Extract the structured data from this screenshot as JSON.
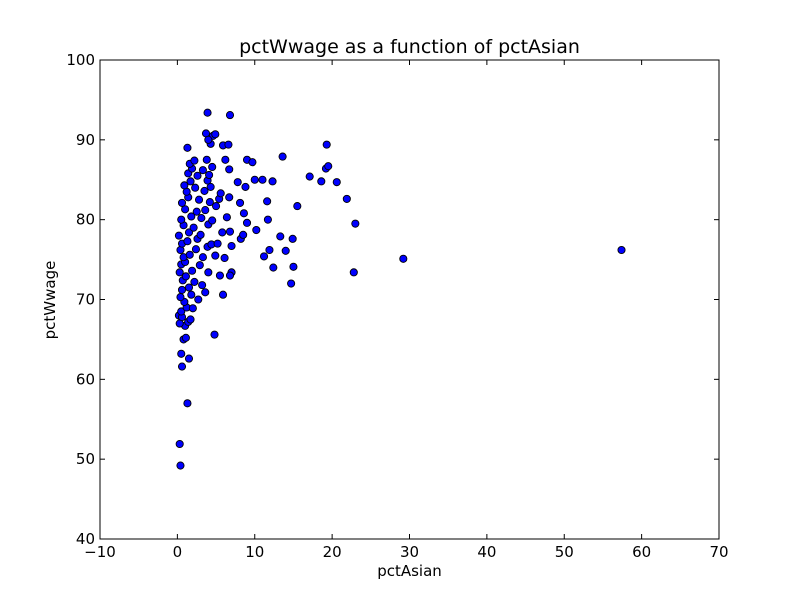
{
  "chart_data": {
    "type": "scatter",
    "title": "pctWwage as a function of pctAsian",
    "xlabel": "pctAsian",
    "ylabel": "pctWwage",
    "xlim": [
      -10,
      70
    ],
    "ylim": [
      40,
      100
    ],
    "xticks": [
      -10,
      0,
      10,
      20,
      30,
      40,
      50,
      60,
      70
    ],
    "yticks": [
      40,
      50,
      60,
      70,
      80,
      90,
      100
    ],
    "xtick_labels": [
      "−10",
      "0",
      "10",
      "20",
      "30",
      "40",
      "50",
      "60",
      "70"
    ],
    "ytick_labels": [
      "40",
      "50",
      "60",
      "70",
      "80",
      "90",
      "100"
    ],
    "grid": false,
    "legend": "none",
    "colors": {
      "point_fill": "#0000ff",
      "point_edge": "#000000",
      "axes": "#000000",
      "background": "#ffffff"
    },
    "series": [
      {
        "values": [
          [
            0.4,
            49.2
          ],
          [
            0.3,
            51.9
          ],
          [
            1.3,
            57.0
          ],
          [
            0.6,
            61.6
          ],
          [
            0.5,
            63.2
          ],
          [
            1.5,
            62.6
          ],
          [
            0.8,
            65.0
          ],
          [
            1.1,
            65.2
          ],
          [
            4.8,
            65.6
          ],
          [
            1.0,
            66.7
          ],
          [
            1.4,
            67.2
          ],
          [
            0.3,
            67.0
          ],
          [
            0.2,
            68.0
          ],
          [
            0.6,
            67.8
          ],
          [
            1.7,
            67.5
          ],
          [
            0.5,
            68.5
          ],
          [
            1.2,
            69.0
          ],
          [
            2.0,
            68.9
          ],
          [
            0.9,
            69.7
          ],
          [
            0.4,
            70.3
          ],
          [
            1.8,
            70.6
          ],
          [
            2.7,
            70.0
          ],
          [
            3.6,
            70.9
          ],
          [
            5.9,
            70.6
          ],
          [
            0.6,
            71.2
          ],
          [
            1.5,
            71.5
          ],
          [
            3.2,
            71.8
          ],
          [
            0.7,
            72.4
          ],
          [
            1.1,
            72.9
          ],
          [
            2.2,
            72.2
          ],
          [
            14.7,
            72.0
          ],
          [
            0.3,
            73.4
          ],
          [
            1.9,
            73.6
          ],
          [
            4.0,
            73.4
          ],
          [
            5.5,
            73.0
          ],
          [
            7.0,
            73.4
          ],
          [
            12.4,
            74.0
          ],
          [
            22.8,
            73.4
          ],
          [
            0.5,
            74.4
          ],
          [
            1.0,
            74.7
          ],
          [
            2.9,
            74.3
          ],
          [
            6.8,
            73.0
          ],
          [
            15.0,
            74.1
          ],
          [
            0.8,
            75.3
          ],
          [
            1.6,
            75.6
          ],
          [
            3.3,
            75.3
          ],
          [
            4.9,
            75.5
          ],
          [
            6.1,
            75.2
          ],
          [
            11.2,
            75.4
          ],
          [
            29.2,
            75.1
          ],
          [
            0.4,
            76.2
          ],
          [
            2.4,
            76.3
          ],
          [
            3.9,
            76.6
          ],
          [
            7.0,
            76.7
          ],
          [
            11.9,
            76.2
          ],
          [
            14.0,
            76.1
          ],
          [
            57.4,
            76.2
          ],
          [
            0.6,
            77.0
          ],
          [
            1.3,
            77.3
          ],
          [
            2.6,
            77.6
          ],
          [
            4.4,
            76.9
          ],
          [
            5.2,
            77.0
          ],
          [
            8.2,
            77.6
          ],
          [
            13.3,
            77.9
          ],
          [
            14.9,
            77.6
          ],
          [
            0.2,
            78.0
          ],
          [
            1.5,
            78.4
          ],
          [
            3.0,
            78.1
          ],
          [
            5.8,
            78.4
          ],
          [
            6.8,
            78.5
          ],
          [
            10.2,
            78.7
          ],
          [
            0.8,
            79.3
          ],
          [
            2.1,
            79.0
          ],
          [
            4.0,
            79.4
          ],
          [
            8.5,
            78.1
          ],
          [
            23.0,
            79.5
          ],
          [
            0.5,
            80.0
          ],
          [
            1.8,
            80.4
          ],
          [
            3.1,
            80.2
          ],
          [
            4.5,
            79.9
          ],
          [
            6.4,
            80.3
          ],
          [
            9.0,
            79.6
          ],
          [
            11.7,
            80.0
          ],
          [
            1.0,
            81.3
          ],
          [
            2.5,
            81.0
          ],
          [
            3.6,
            81.2
          ],
          [
            5.0,
            81.7
          ],
          [
            8.6,
            80.8
          ],
          [
            15.5,
            81.7
          ],
          [
            0.6,
            82.1
          ],
          [
            1.4,
            82.8
          ],
          [
            2.8,
            82.5
          ],
          [
            4.2,
            82.2
          ],
          [
            5.4,
            82.6
          ],
          [
            6.7,
            82.8
          ],
          [
            8.1,
            82.1
          ],
          [
            11.6,
            82.3
          ],
          [
            21.9,
            82.6
          ],
          [
            1.2,
            83.5
          ],
          [
            3.5,
            83.6
          ],
          [
            5.6,
            83.3
          ],
          [
            0.9,
            84.3
          ],
          [
            2.3,
            84.0
          ],
          [
            4.3,
            84.1
          ],
          [
            8.8,
            84.1
          ],
          [
            1.7,
            84.8
          ],
          [
            3.9,
            84.9
          ],
          [
            7.8,
            84.7
          ],
          [
            10.0,
            85.0
          ],
          [
            11.0,
            85.0
          ],
          [
            12.3,
            84.8
          ],
          [
            17.1,
            85.4
          ],
          [
            18.6,
            84.8
          ],
          [
            20.6,
            84.7
          ],
          [
            1.4,
            85.8
          ],
          [
            2.6,
            85.5
          ],
          [
            4.1,
            85.6
          ],
          [
            1.9,
            86.4
          ],
          [
            3.3,
            86.2
          ],
          [
            4.5,
            86.6
          ],
          [
            6.7,
            86.3
          ],
          [
            19.2,
            86.4
          ],
          [
            19.5,
            86.7
          ],
          [
            1.6,
            87.0
          ],
          [
            2.2,
            87.4
          ],
          [
            3.8,
            87.5
          ],
          [
            6.2,
            87.5
          ],
          [
            9.0,
            87.5
          ],
          [
            9.7,
            87.2
          ],
          [
            13.6,
            87.9
          ],
          [
            1.3,
            89.0
          ],
          [
            4.3,
            89.5
          ],
          [
            5.9,
            89.3
          ],
          [
            6.6,
            89.4
          ],
          [
            19.3,
            89.4
          ],
          [
            3.7,
            90.8
          ],
          [
            4.6,
            90.5
          ],
          [
            4.0,
            90.0
          ],
          [
            4.9,
            90.7
          ],
          [
            3.9,
            93.4
          ],
          [
            6.8,
            93.1
          ]
        ]
      }
    ]
  }
}
